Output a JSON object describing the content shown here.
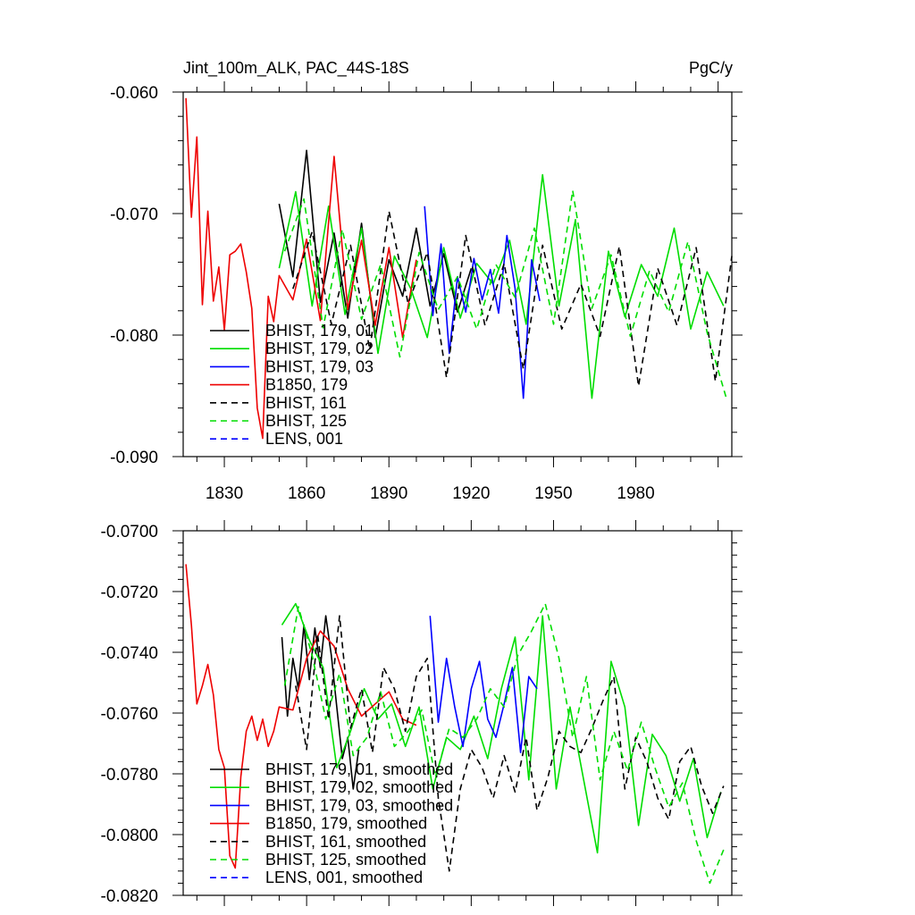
{
  "chart_data": [
    {
      "type": "line",
      "title": "Jint_100m_ALK, PAC_44S-18S",
      "units": "PgC/y",
      "xlabel": "",
      "ylabel": "",
      "xlim": [
        1815,
        2015
      ],
      "ylim": [
        -0.09,
        -0.06
      ],
      "xticks": [
        1830,
        1860,
        1890,
        1920,
        1950,
        1980
      ],
      "xtick_labels": [
        "1830",
        "1860",
        "1890",
        "1920",
        "1950",
        "1980"
      ],
      "yticks": [
        -0.09,
        -0.08,
        -0.07,
        -0.06
      ],
      "ytick_labels": [
        "-0.090",
        "-0.080",
        "-0.070",
        "-0.060"
      ],
      "legend": {
        "position": "bottom-left"
      },
      "series": [
        {
          "name": "BHIST, 179, 01",
          "color": "#000000",
          "dash": "solid",
          "x": [
            1850,
            1855,
            1860,
            1865,
            1870,
            1875,
            1880,
            1885,
            1890,
            1895,
            1900,
            1905,
            1910,
            1915,
            1920
          ],
          "values": [
            -0.0692,
            -0.0752,
            -0.0648,
            -0.0773,
            -0.0716,
            -0.0786,
            -0.0708,
            -0.0802,
            -0.0738,
            -0.0768,
            -0.0712,
            -0.0776,
            -0.0733,
            -0.0781,
            -0.0745
          ]
        },
        {
          "name": "BHIST, 179, 02",
          "color": "#00dd00",
          "dash": "solid",
          "x": [
            1850,
            1856,
            1862,
            1868,
            1874,
            1880,
            1886,
            1892,
            1898,
            1904,
            1910,
            1916,
            1922,
            1928,
            1934,
            1940,
            1946,
            1952,
            1958,
            1964,
            1970,
            1976,
            1982,
            1988,
            1994,
            2000,
            2006,
            2012
          ],
          "values": [
            -0.0745,
            -0.0682,
            -0.0776,
            -0.0694,
            -0.0783,
            -0.0712,
            -0.0815,
            -0.0735,
            -0.0762,
            -0.0802,
            -0.0728,
            -0.0786,
            -0.0741,
            -0.0758,
            -0.0722,
            -0.0791,
            -0.0668,
            -0.0776,
            -0.0705,
            -0.0852,
            -0.0731,
            -0.0785,
            -0.0742,
            -0.0768,
            -0.0712,
            -0.0795,
            -0.0748,
            -0.0776
          ]
        },
        {
          "name": "BHIST, 179, 03",
          "color": "#0000ff",
          "dash": "solid",
          "x": [
            1903,
            1906,
            1909,
            1912,
            1915,
            1918,
            1921,
            1924,
            1927,
            1930,
            1933,
            1936,
            1939,
            1942,
            1945
          ],
          "values": [
            -0.0694,
            -0.0784,
            -0.0725,
            -0.0815,
            -0.0752,
            -0.0781,
            -0.0737,
            -0.0771,
            -0.0746,
            -0.0782,
            -0.0718,
            -0.0762,
            -0.0852,
            -0.0738,
            -0.0772
          ]
        },
        {
          "name": "B1850, 179",
          "color": "#ee0000",
          "dash": "solid",
          "x": [
            1816,
            1818,
            1820,
            1822,
            1824,
            1826,
            1828,
            1830,
            1832,
            1834,
            1836,
            1838,
            1840,
            1842,
            1844,
            1846,
            1848,
            1850,
            1855,
            1860,
            1865,
            1870,
            1875,
            1880,
            1885,
            1890,
            1895,
            1900
          ],
          "values": [
            -0.0605,
            -0.0703,
            -0.0637,
            -0.0775,
            -0.0698,
            -0.0772,
            -0.0744,
            -0.0796,
            -0.0734,
            -0.0731,
            -0.0725,
            -0.0748,
            -0.0778,
            -0.086,
            -0.0885,
            -0.0768,
            -0.0789,
            -0.0751,
            -0.0771,
            -0.0721,
            -0.0788,
            -0.0653,
            -0.0779,
            -0.0722,
            -0.0792,
            -0.0728,
            -0.0802,
            -0.0738
          ]
        },
        {
          "name": "BHIST, 161",
          "color": "#000000",
          "dash": "dashed",
          "x": [
            1855,
            1862,
            1869,
            1876,
            1883,
            1890,
            1897,
            1904,
            1911,
            1918,
            1925,
            1932,
            1939,
            1946,
            1953,
            1960,
            1967,
            1974,
            1981,
            1988,
            1995,
            2002,
            2009,
            2015
          ],
          "values": [
            -0.0762,
            -0.0715,
            -0.0791,
            -0.0726,
            -0.0812,
            -0.0698,
            -0.0774,
            -0.0732,
            -0.0835,
            -0.0718,
            -0.0792,
            -0.0741,
            -0.0828,
            -0.0726,
            -0.0795,
            -0.0758,
            -0.0801,
            -0.0727,
            -0.0842,
            -0.0745,
            -0.0792,
            -0.0728,
            -0.0838,
            -0.0735
          ]
        },
        {
          "name": "BHIST, 125",
          "color": "#00dd00",
          "dash": "dashed",
          "x": [
            1852,
            1859,
            1866,
            1873,
            1880,
            1887,
            1894,
            1901,
            1908,
            1915,
            1922,
            1929,
            1936,
            1943,
            1950,
            1957,
            1964,
            1971,
            1978,
            1985,
            1992,
            1999,
            2006,
            2013
          ],
          "values": [
            -0.0731,
            -0.0688,
            -0.0794,
            -0.0713,
            -0.0787,
            -0.0742,
            -0.0818,
            -0.0732,
            -0.0779,
            -0.0752,
            -0.0795,
            -0.0742,
            -0.0769,
            -0.0712,
            -0.0791,
            -0.0681,
            -0.0778,
            -0.0734,
            -0.0801,
            -0.0747,
            -0.0781,
            -0.0723,
            -0.0798,
            -0.0852
          ]
        },
        {
          "name": "LENS, 001",
          "color": "#0000ff",
          "dash": "dashed",
          "x": [],
          "values": []
        }
      ]
    },
    {
      "type": "line",
      "title": "",
      "xlabel": "",
      "ylabel": "",
      "xlim": [
        1815,
        2015
      ],
      "ylim": [
        -0.082,
        -0.07
      ],
      "yticks": [
        -0.082,
        -0.08,
        -0.078,
        -0.076,
        -0.074,
        -0.072,
        -0.07
      ],
      "ytick_labels": [
        "-0.0820",
        "-0.0800",
        "-0.0780",
        "-0.0760",
        "-0.0740",
        "-0.0720",
        "-0.0700"
      ],
      "legend": {
        "position": "bottom-left"
      },
      "series": [
        {
          "name": "BHIST, 179, 01, smoothed",
          "color": "#000000",
          "dash": "solid",
          "x": [
            1851,
            1853,
            1855,
            1857,
            1859,
            1861,
            1863,
            1865,
            1867,
            1869,
            1871,
            1873,
            1875,
            1877,
            1879
          ],
          "values": [
            -0.0735,
            -0.0761,
            -0.0742,
            -0.0752,
            -0.0731,
            -0.0749,
            -0.0732,
            -0.0745,
            -0.0728,
            -0.0741,
            -0.0758,
            -0.0775,
            -0.0768,
            -0.0785,
            -0.0772
          ]
        },
        {
          "name": "BHIST, 179, 02, smoothed",
          "color": "#00dd00",
          "dash": "solid",
          "x": [
            1851,
            1856,
            1861,
            1866,
            1871,
            1876,
            1881,
            1886,
            1891,
            1896,
            1901,
            1906,
            1911,
            1916,
            1921,
            1926,
            1931,
            1936,
            1941,
            1946,
            1951,
            1956,
            1961,
            1966,
            1971,
            1976,
            1981,
            1986,
            1991,
            1996,
            2001,
            2006,
            2011
          ],
          "values": [
            -0.0731,
            -0.0724,
            -0.0736,
            -0.0745,
            -0.0778,
            -0.0766,
            -0.0752,
            -0.0762,
            -0.0757,
            -0.0771,
            -0.0758,
            -0.0785,
            -0.0768,
            -0.0772,
            -0.0761,
            -0.0775,
            -0.0752,
            -0.0735,
            -0.0782,
            -0.0728,
            -0.0785,
            -0.0758,
            -0.0782,
            -0.0806,
            -0.0743,
            -0.0758,
            -0.0797,
            -0.0767,
            -0.0774,
            -0.0789,
            -0.0775,
            -0.0801,
            -0.0786
          ]
        },
        {
          "name": "BHIST, 179, 03, smoothed",
          "color": "#0000ff",
          "dash": "solid",
          "x": [
            1905,
            1908,
            1911,
            1914,
            1917,
            1920,
            1923,
            1926,
            1929,
            1932,
            1935,
            1938,
            1941,
            1944
          ],
          "values": [
            -0.0728,
            -0.0763,
            -0.0742,
            -0.0758,
            -0.0771,
            -0.0752,
            -0.0743,
            -0.0762,
            -0.0768,
            -0.0757,
            -0.0745,
            -0.0773,
            -0.0748,
            -0.0752
          ]
        },
        {
          "name": "B1850, 179, smoothed",
          "color": "#ee0000",
          "dash": "solid",
          "x": [
            1816,
            1818,
            1820,
            1822,
            1824,
            1826,
            1828,
            1830,
            1832,
            1834,
            1836,
            1838,
            1840,
            1842,
            1844,
            1846,
            1848,
            1850,
            1855,
            1860,
            1865,
            1870,
            1875,
            1880,
            1885,
            1890,
            1895,
            1900
          ],
          "values": [
            -0.0711,
            -0.0731,
            -0.0757,
            -0.0751,
            -0.0744,
            -0.0754,
            -0.0772,
            -0.0778,
            -0.0807,
            -0.0811,
            -0.0781,
            -0.0766,
            -0.0761,
            -0.0769,
            -0.0762,
            -0.0771,
            -0.0766,
            -0.0758,
            -0.0759,
            -0.0742,
            -0.0733,
            -0.0738,
            -0.0752,
            -0.0761,
            -0.0757,
            -0.0753,
            -0.0762,
            -0.0764
          ]
        },
        {
          "name": "BHIST, 161, smoothed",
          "color": "#000000",
          "dash": "dashed",
          "x": [
            1856,
            1860,
            1864,
            1868,
            1872,
            1876,
            1880,
            1884,
            1888,
            1892,
            1896,
            1900,
            1904,
            1908,
            1912,
            1916,
            1920,
            1924,
            1928,
            1932,
            1936,
            1940,
            1944,
            1948,
            1952,
            1956,
            1960,
            1964,
            1968,
            1972,
            1976,
            1980,
            1984,
            1988,
            1992,
            1996,
            2000,
            2004,
            2008,
            2012
          ],
          "values": [
            -0.0751,
            -0.0772,
            -0.0734,
            -0.0762,
            -0.0728,
            -0.0765,
            -0.0752,
            -0.0773,
            -0.0745,
            -0.0752,
            -0.0766,
            -0.0748,
            -0.0742,
            -0.0788,
            -0.0812,
            -0.0785,
            -0.0772,
            -0.0778,
            -0.0788,
            -0.0774,
            -0.0786,
            -0.0768,
            -0.0792,
            -0.0781,
            -0.0766,
            -0.0771,
            -0.0773,
            -0.0765,
            -0.0756,
            -0.0748,
            -0.0785,
            -0.0768,
            -0.0776,
            -0.0788,
            -0.0795,
            -0.0776,
            -0.0771,
            -0.0784,
            -0.0793,
            -0.0784
          ]
        },
        {
          "name": "BHIST, 125, smoothed",
          "color": "#00dd00",
          "dash": "dashed",
          "x": [
            1852,
            1857,
            1862,
            1867,
            1872,
            1877,
            1882,
            1887,
            1892,
            1897,
            1902,
            1907,
            1912,
            1917,
            1922,
            1927,
            1932,
            1937,
            1942,
            1947,
            1952,
            1957,
            1962,
            1967,
            1972,
            1977,
            1982,
            1987,
            1992,
            1997,
            2002,
            2007,
            2012
          ],
          "values": [
            -0.0751,
            -0.0725,
            -0.0741,
            -0.0762,
            -0.0747,
            -0.0774,
            -0.0768,
            -0.0753,
            -0.0771,
            -0.0766,
            -0.0759,
            -0.0781,
            -0.0765,
            -0.0768,
            -0.0762,
            -0.0752,
            -0.0758,
            -0.0741,
            -0.0733,
            -0.0724,
            -0.0742,
            -0.0768,
            -0.0748,
            -0.0782,
            -0.0766,
            -0.0779,
            -0.0763,
            -0.0778,
            -0.0791,
            -0.0783,
            -0.0802,
            -0.0816,
            -0.0805
          ]
        },
        {
          "name": "LENS, 001, smoothed",
          "color": "#0000ff",
          "dash": "dashed",
          "x": [],
          "values": []
        }
      ]
    }
  ]
}
